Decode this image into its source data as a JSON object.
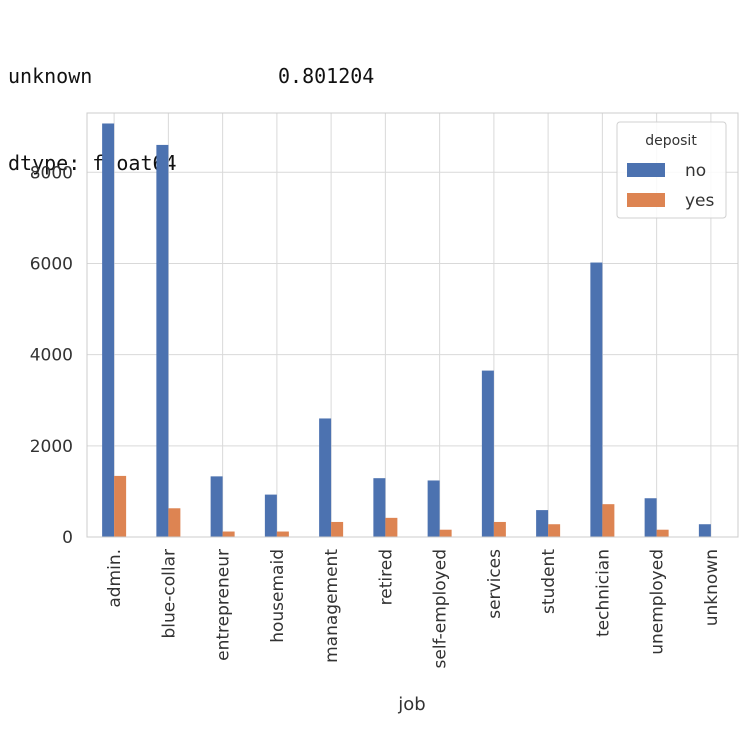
{
  "console": {
    "lines": [
      {
        "key": "unknown",
        "value": "0.801204"
      },
      {
        "key": "dtype: float64",
        "value": ""
      }
    ]
  },
  "chart_data": {
    "type": "bar",
    "xlabel": "job",
    "ylabel": "",
    "ylim": [
      0,
      9300
    ],
    "yticks": [
      0,
      2000,
      4000,
      6000,
      8000
    ],
    "grid": true,
    "legend": {
      "title": "deposit",
      "placement": "top-right"
    },
    "categories": [
      "admin.",
      "blue-collar",
      "entrepreneur",
      "housemaid",
      "management",
      "retired",
      "self-employed",
      "services",
      "student",
      "technician",
      "unemployed",
      "unknown"
    ],
    "series": [
      {
        "name": "no",
        "color": "#4c72b0",
        "values": [
          9070,
          8600,
          1330,
          930,
          2600,
          1290,
          1240,
          3650,
          590,
          6020,
          850,
          280
        ]
      },
      {
        "name": "yes",
        "color": "#dd8452",
        "values": [
          1340,
          630,
          120,
          120,
          330,
          420,
          160,
          330,
          280,
          720,
          160,
          10
        ]
      }
    ]
  }
}
